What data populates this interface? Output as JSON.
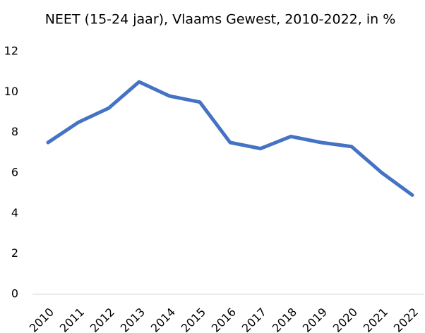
{
  "chart_data": {
    "type": "line",
    "title": "NEET (15-24 jaar), Vlaams Gewest, 2010-2022, in %",
    "categories": [
      "2010",
      "2011",
      "2012",
      "2013",
      "2014",
      "2015",
      "2016",
      "2017",
      "2018",
      "2019",
      "2020",
      "2021",
      "2022"
    ],
    "series": [
      {
        "name": "NEET",
        "color": "#4472c4",
        "values": [
          7.5,
          8.5,
          9.2,
          10.5,
          9.8,
          9.5,
          7.5,
          7.2,
          7.8,
          7.5,
          7.3,
          6.0,
          4.9
        ]
      }
    ],
    "ylim": [
      0,
      12
    ],
    "yticks": [
      0,
      2,
      4,
      6,
      8,
      10,
      12
    ],
    "grid": false
  }
}
